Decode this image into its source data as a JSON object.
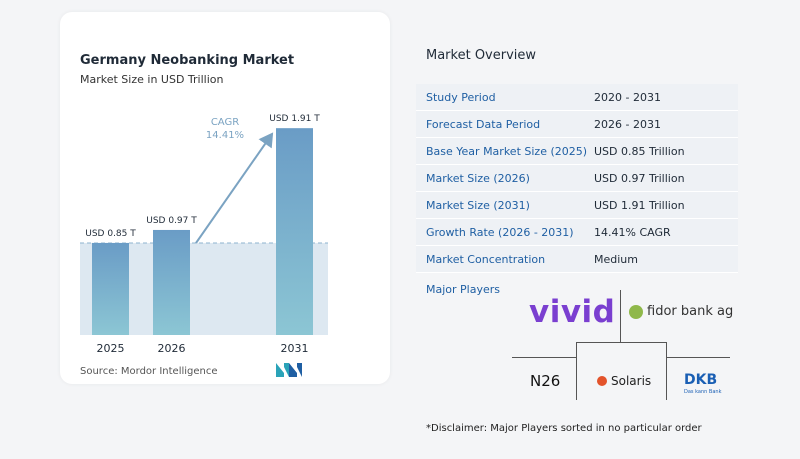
{
  "chart_data": {
    "type": "bar",
    "title": "Germany Neobanking Market",
    "subtitle": "Market Size in USD Trillion",
    "categories": [
      "2025",
      "2026",
      "2031"
    ],
    "values": [
      0.85,
      0.97,
      1.91
    ],
    "data_labels": [
      "USD 0.85 T",
      "USD 0.97 T",
      "USD 1.91 T"
    ],
    "cagr_label": "CAGR",
    "cagr_value": "14.41%",
    "ylim": [
      0,
      2.05
    ],
    "colors": {
      "bar_top": "#6a9cc6",
      "bar_bottom": "#8cc6d4",
      "band": "#dde8f1",
      "arrow": "#7ba3c2",
      "dashed": "#8eb3cf"
    }
  },
  "source": "Source:  Mordor Intelligence",
  "overview": {
    "title": "Market Overview",
    "rows": [
      {
        "key": "Study Period",
        "value": "2020 - 2031"
      },
      {
        "key": "Forecast Data Period",
        "value": "2026 - 2031"
      },
      {
        "key": "Base Year Market Size (2025)",
        "value": "USD 0.85 Trillion"
      },
      {
        "key": "Market Size (2026)",
        "value": "USD 0.97 Trillion"
      },
      {
        "key": "Market Size (2031)",
        "value": "USD 1.91 Trillion"
      },
      {
        "key": "Growth Rate (2026 - 2031)",
        "value": "14.41% CAGR"
      },
      {
        "key": "Market Concentration",
        "value": "Medium"
      }
    ],
    "players_title": "Major Players",
    "players": [
      "vivid",
      "fidor bank ag",
      "N26",
      "Solaris",
      "DKB",
      "Das kann Bank"
    ],
    "disclaimer": "*Disclaimer: Major Players sorted in no particular order"
  }
}
